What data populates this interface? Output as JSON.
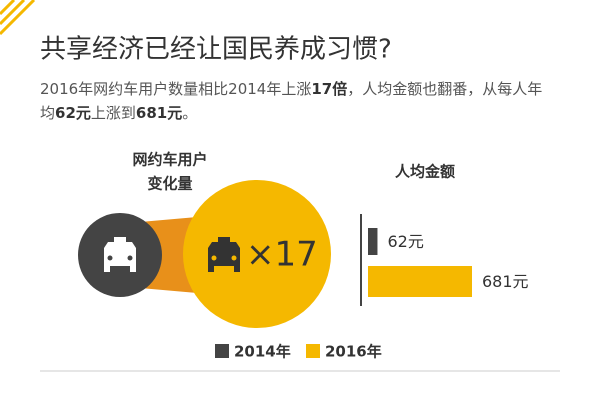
{
  "header": {
    "title": "共享经济已经让国民养成习惯?",
    "subtitle_lines": [
      [
        {
          "text": "2016年网约车用户数量相比2014年上涨",
          "bold": false
        },
        {
          "text": "17倍",
          "bold": true
        },
        {
          "text": "，人均金额也翻番，从每人年",
          "bold": false
        }
      ],
      [
        {
          "text": "均",
          "bold": false
        },
        {
          "text": "62元",
          "bold": true
        },
        {
          "text": "上涨到",
          "bold": false
        },
        {
          "text": "681元",
          "bold": true
        },
        {
          "text": "。",
          "bold": false
        }
      ]
    ]
  },
  "users_panel": {
    "label_lines": [
      "网约车用户",
      "变化量"
    ],
    "multiplier": "×17"
  },
  "chart_data": {
    "type": "bar",
    "orientation": "horizontal",
    "title": "人均金额",
    "categories": [
      "2014年",
      "2016年"
    ],
    "values": [
      62,
      681
    ],
    "value_labels": [
      "62元",
      "681元"
    ],
    "colors": [
      "#444444",
      "#f5b800"
    ]
  }
}
